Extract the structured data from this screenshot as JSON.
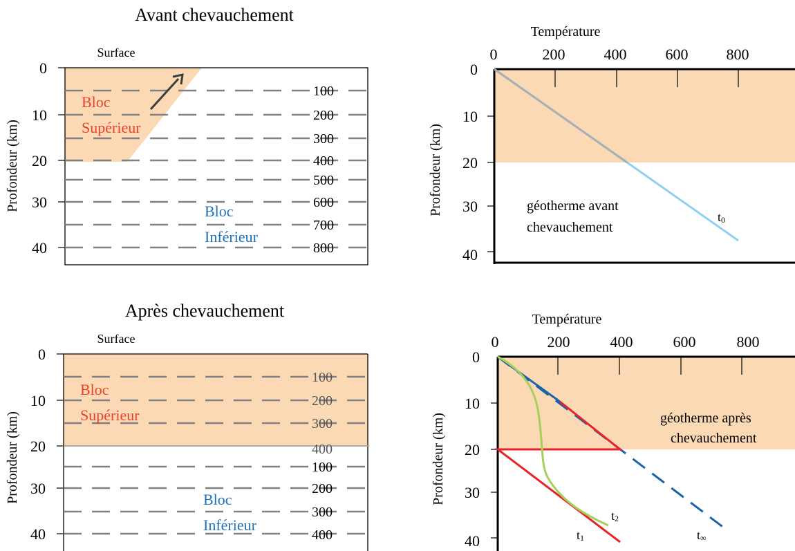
{
  "colors": {
    "upper_block_fill": "#fbd9b4",
    "upper_label": "#e8412c",
    "lower_label": "#1e72b8",
    "dashes": "#808080",
    "axis": "#000000",
    "geotherm_t0": "#8fd0ee",
    "red_geotherm": "#e52329",
    "green_geotherm": "#a8cf5d",
    "blue_dashed_geotherm": "#1a63aa"
  },
  "top_left": {
    "title": "Avant chevauchement",
    "surface_label": "Surface",
    "ylabel": "Profondeur (km)",
    "depth_ticks": [
      "0",
      "10",
      "20",
      "30",
      "40"
    ],
    "isotherm_labels": [
      "100",
      "200",
      "300",
      "400",
      "500",
      "600",
      "700",
      "800"
    ],
    "upper_block": {
      "line1": "Bloc",
      "line2": "Supérieur"
    },
    "lower_block": {
      "line1": "Bloc",
      "line2": "Inférieur"
    },
    "arrow_icon": "arrow-up-right"
  },
  "bottom_left": {
    "title": "Après chevauchement",
    "surface_label": "Surface",
    "ylabel": "Profondeur (km)",
    "depth_ticks": [
      "0",
      "10",
      "20",
      "30",
      "40"
    ],
    "upper_isotherm_labels": [
      "100",
      "200",
      "300",
      "400"
    ],
    "lower_isotherm_labels": [
      "100",
      "200",
      "300",
      "400"
    ],
    "upper_block": {
      "line1": "Bloc",
      "line2": "Supérieur"
    },
    "lower_block": {
      "line1": "Bloc",
      "line2": "Inférieur"
    }
  },
  "top_right": {
    "xlabel": "Température",
    "ylabel": "Profondeur (km)",
    "temp_ticks": [
      "0",
      "200",
      "400",
      "600",
      "800"
    ],
    "depth_ticks": [
      "0",
      "10",
      "20",
      "30",
      "40"
    ],
    "annotation_line1": "géotherme avant",
    "annotation_line2": "chevauchement",
    "curve_label": "t",
    "curve_sub": "0"
  },
  "bottom_right": {
    "xlabel": "Température",
    "ylabel": "Profondeur (km)",
    "temp_ticks": [
      "0",
      "200",
      "400",
      "600",
      "800"
    ],
    "depth_ticks": [
      "0",
      "10",
      "20",
      "30",
      "40"
    ],
    "annotation_line1": "géotherme après",
    "annotation_line2": "chevauchement",
    "t1": {
      "label": "t",
      "sub": "1"
    },
    "t2": {
      "label": "t",
      "sub": "2"
    },
    "tinf": {
      "label": "t",
      "sub": "∞"
    }
  }
}
